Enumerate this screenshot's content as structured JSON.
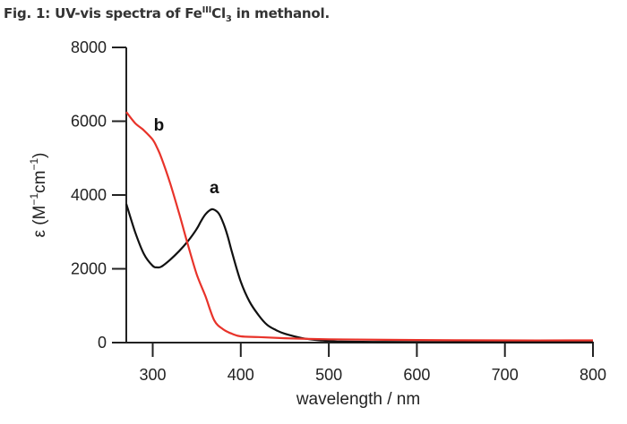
{
  "figure": {
    "caption_prefix": "Fig. 1: UV-vis spectra of Fe",
    "caption_sup": "III",
    "caption_mid": "Cl",
    "caption_sub": "3",
    "caption_suffix": " in methanol."
  },
  "chart_data": {
    "type": "line",
    "title": "Fig. 1: UV-vis spectra of FeIIICl3 in methanol.",
    "xlabel": "wavelength / nm",
    "ylabel": "ε (M⁻¹cm⁻¹)",
    "ylabel_parts": {
      "main": "ε (M",
      "sup1": "−1",
      "mid": "cm",
      "sup2": "−1",
      "end": ")"
    },
    "xlim": [
      270,
      800
    ],
    "ylim": [
      0,
      8000
    ],
    "xticks": [
      300,
      400,
      500,
      600,
      700,
      800
    ],
    "yticks": [
      0,
      2000,
      4000,
      6000,
      8000
    ],
    "grid": false,
    "legend": "none (inline labels a, b)",
    "series": [
      {
        "name": "a",
        "color": "#111111",
        "label_at": {
          "x": 370,
          "y": 4050
        },
        "x": [
          270,
          280,
          290,
          300,
          305,
          310,
          320,
          330,
          340,
          350,
          355,
          360,
          365,
          369,
          375,
          380,
          385,
          390,
          400,
          410,
          420,
          430,
          440,
          450,
          470,
          490,
          510,
          550,
          600,
          700,
          800
        ],
        "y": [
          3760,
          3000,
          2400,
          2080,
          2040,
          2060,
          2250,
          2480,
          2750,
          3080,
          3300,
          3480,
          3590,
          3610,
          3500,
          3250,
          2900,
          2450,
          1650,
          1110,
          750,
          480,
          340,
          240,
          120,
          60,
          30,
          20,
          15,
          10,
          10
        ]
      },
      {
        "name": "b",
        "color": "#e8332a",
        "label_at": {
          "x": 307,
          "y": 5750
        },
        "x": [
          270,
          280,
          290,
          300,
          305,
          310,
          320,
          330,
          340,
          350,
          360,
          370,
          380,
          390,
          400,
          420,
          450,
          500,
          600,
          700,
          800
        ],
        "y": [
          6250,
          5950,
          5750,
          5500,
          5280,
          5000,
          4300,
          3500,
          2650,
          1850,
          1250,
          600,
          360,
          240,
          170,
          150,
          120,
          90,
          70,
          60,
          60
        ]
      }
    ]
  }
}
